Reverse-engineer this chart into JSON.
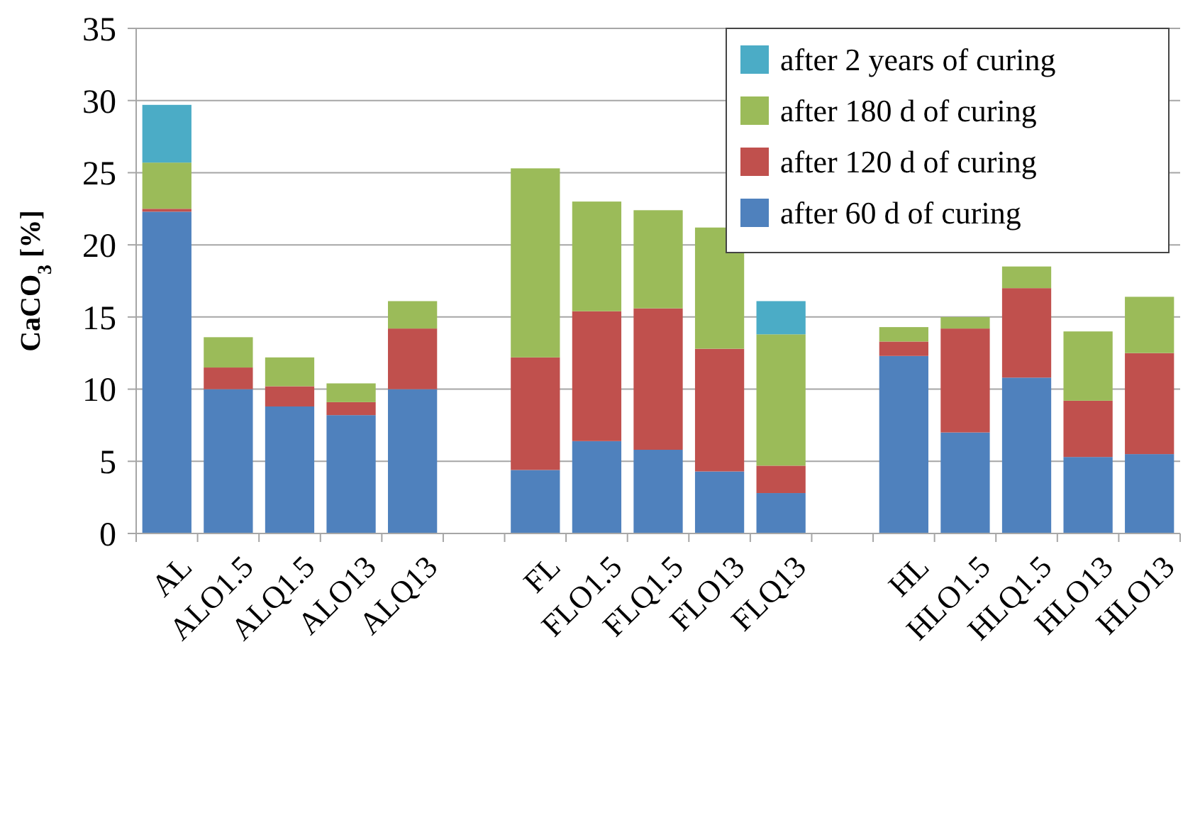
{
  "chart_data": {
    "type": "bar",
    "stacked": true,
    "ylabel": "CaCO$_{3}$ [%]",
    "categories": [
      "AL",
      "ALO1.5",
      "ALQ1.5",
      "ALO13",
      "ALQ13",
      null,
      "FL",
      "FLO1.5",
      "FLQ1.5",
      "FLO13",
      "FLQ13",
      null,
      "HL",
      "HLO1.5",
      "HLQ1.5",
      "HLO13",
      "HLO13"
    ],
    "series": [
      {
        "name": "after 60 d of curing",
        "color": "#4f81bd",
        "values": [
          22.3,
          10,
          8.8,
          8.2,
          10,
          null,
          4.4,
          6.4,
          5.8,
          4.3,
          2.8,
          null,
          12.3,
          7.0,
          10.8,
          5.3,
          5.5
        ]
      },
      {
        "name": "after 120 d of curing",
        "color": "#c0504d",
        "values": [
          0.2,
          1.5,
          1.4,
          0.9,
          4.2,
          null,
          7.8,
          9.0,
          9.8,
          8.5,
          1.9,
          null,
          1.0,
          7.2,
          6.2,
          3.9,
          7.0
        ]
      },
      {
        "name": "after 180 d of curing",
        "color": "#9bbb59",
        "values": [
          3.2,
          2.1,
          2.0,
          1.3,
          1.9,
          null,
          13.1,
          7.6,
          6.8,
          8.4,
          9.1,
          null,
          1.0,
          0.8,
          1.5,
          4.8,
          3.9
        ]
      },
      {
        "name": "after 2 years of curing",
        "color": "#4bacc6",
        "values": [
          4.0,
          null,
          null,
          null,
          null,
          null,
          null,
          null,
          null,
          null,
          2.3,
          null,
          null,
          null,
          null,
          null,
          null
        ]
      }
    ],
    "ylim": [
      0,
      35
    ],
    "yticks": [
      0,
      5,
      10,
      15,
      20,
      25,
      30,
      35
    ],
    "grid": "y",
    "legend": "top right"
  }
}
